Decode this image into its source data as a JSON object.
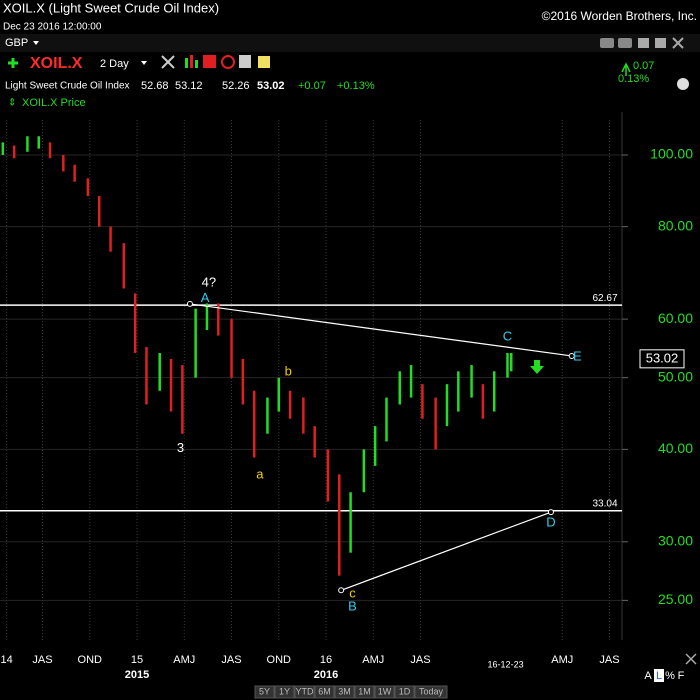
{
  "window": {
    "title": "XOIL.X (Light Sweet Crude Oil Index)",
    "datetime": "Dec 23 2016 12:00:00",
    "copyright": "©2016 Worden Brothers, Inc.",
    "currency": "GBP",
    "symbol": "XOIL.X",
    "period": "2 Day",
    "name": "Light Sweet Crude Oil Index",
    "open": "52.68",
    "high": "53.12",
    "low": "52.26",
    "last": "53.02",
    "change": "+0.07",
    "change_pct": "+0.13%",
    "side_change": "0.07",
    "side_change_pct": "0.13%",
    "ranges": [
      "5Y",
      "1Y",
      "YTD",
      "6M",
      "3M",
      "1M",
      "1W",
      "1D",
      "Today"
    ],
    "scale_buttons": [
      "A",
      "L",
      "%",
      "F"
    ]
  },
  "chart_data": {
    "type": "ohlc",
    "log_scale": true,
    "grid": true,
    "x": [
      2014.29,
      2014.35,
      2014.42,
      2014.48,
      2014.54,
      2014.61,
      2014.67,
      2014.74,
      2014.8,
      2014.86,
      2014.93,
      2014.99,
      2015.05,
      2015.12,
      2015.18,
      2015.24,
      2015.31,
      2015.37,
      2015.43,
      2015.5,
      2015.56,
      2015.62,
      2015.69,
      2015.75,
      2015.81,
      2015.88,
      2015.94,
      2016.01,
      2016.07,
      2016.13,
      2016.2,
      2016.26,
      2016.32,
      2016.39,
      2016.45,
      2016.51,
      2016.58,
      2016.64,
      2016.7,
      2016.77,
      2016.83,
      2016.89,
      2016.96,
      2016.98
    ],
    "series": [
      {
        "name": "XOIL.X Price",
        "up_color": "#22dd22",
        "down_color": "#e02020",
        "high": [
          104,
          103,
          106,
          106,
          104,
          100,
          97,
          93,
          88,
          80,
          76,
          65,
          55,
          54,
          53,
          52,
          62,
          63,
          63,
          60,
          53,
          48,
          47,
          50,
          48,
          47,
          43,
          40,
          37,
          35,
          40,
          43,
          47,
          51,
          52,
          49,
          47,
          49,
          51,
          52,
          49,
          51,
          54,
          54
        ],
        "low": [
          100,
          99,
          101,
          102,
          99,
          95,
          92,
          88,
          80,
          74,
          66,
          54,
          46,
          48,
          45,
          42,
          50,
          58,
          57,
          50,
          46,
          39,
          42,
          45,
          44,
          42,
          39,
          34,
          27,
          29,
          35,
          38,
          41,
          46,
          47,
          44,
          40,
          43,
          45,
          47,
          44,
          45,
          50,
          51
        ]
      }
    ],
    "xlim": [
      2014.275,
      2017.566
    ],
    "ylim": [
      22.1,
      111.5
    ],
    "xticks": [
      {
        "value": 2014.31,
        "label": "14"
      },
      {
        "value": 2014.5,
        "label": "JAS"
      },
      {
        "value": 2014.75,
        "label": "OND"
      },
      {
        "value": 2015,
        "label": "15"
      },
      {
        "value": 2015.25,
        "label": "AMJ"
      },
      {
        "value": 2015.5,
        "label": "JAS"
      },
      {
        "value": 2015.75,
        "label": "OND"
      },
      {
        "value": 2016,
        "label": "16"
      },
      {
        "value": 2016.25,
        "label": "AMJ"
      },
      {
        "value": 2016.5,
        "label": "JAS"
      },
      {
        "value": 2017.25,
        "label": "AMJ"
      },
      {
        "value": 2017.5,
        "label": "JAS"
      }
    ],
    "year_labels": [
      2015,
      2016
    ],
    "date_marker": {
      "value": 2016.95,
      "label": "16-12-23"
    },
    "yticks": [
      {
        "value": 25,
        "label": "25.00"
      },
      {
        "value": 30,
        "label": "30.00"
      },
      {
        "value": 40,
        "label": "40.00"
      },
      {
        "value": 50,
        "label": "50.00"
      },
      {
        "value": 60,
        "label": "60.00"
      },
      {
        "value": 80,
        "label": "80.00"
      },
      {
        "value": 100,
        "label": "100.00"
      }
    ],
    "levels": [
      {
        "value": 62.67,
        "label": "62.67"
      },
      {
        "value": 33.04,
        "label": "33.04"
      }
    ],
    "trendlines": [
      {
        "x": [
          2015.28,
          2017.3
        ],
        "y": [
          62.9,
          53.5
        ]
      },
      {
        "x": [
          2016.08,
          2017.19
        ],
        "y": [
          25.8,
          32.9
        ]
      }
    ],
    "price_box": {
      "value": 53.02,
      "label": "53.02"
    },
    "annotations": [
      {
        "text": "4?",
        "x": 2015.38,
        "y": 67.1,
        "color": "#ffffff"
      },
      {
        "text": "A",
        "x": 2015.36,
        "y": 64.0,
        "color": "#33ccee"
      },
      {
        "text": "3",
        "x": 2015.23,
        "y": 40.1,
        "color": "#ffffff"
      },
      {
        "text": "a",
        "x": 2015.65,
        "y": 36.9,
        "color": "#f0d000"
      },
      {
        "text": "b",
        "x": 2015.8,
        "y": 50.9,
        "color": "#f0d000"
      },
      {
        "text": "c",
        "x": 2016.14,
        "y": 25.5,
        "color": "#f0d000"
      },
      {
        "text": "B",
        "x": 2016.14,
        "y": 24.5,
        "color": "#33ccee"
      },
      {
        "text": "C",
        "x": 2016.96,
        "y": 56.7,
        "color": "#33ccee"
      },
      {
        "text": "D",
        "x": 2017.19,
        "y": 31.8,
        "color": "#33ccee"
      },
      {
        "text": "E",
        "x": 2017.33,
        "y": 53.3,
        "color": "#33ccee"
      }
    ]
  }
}
